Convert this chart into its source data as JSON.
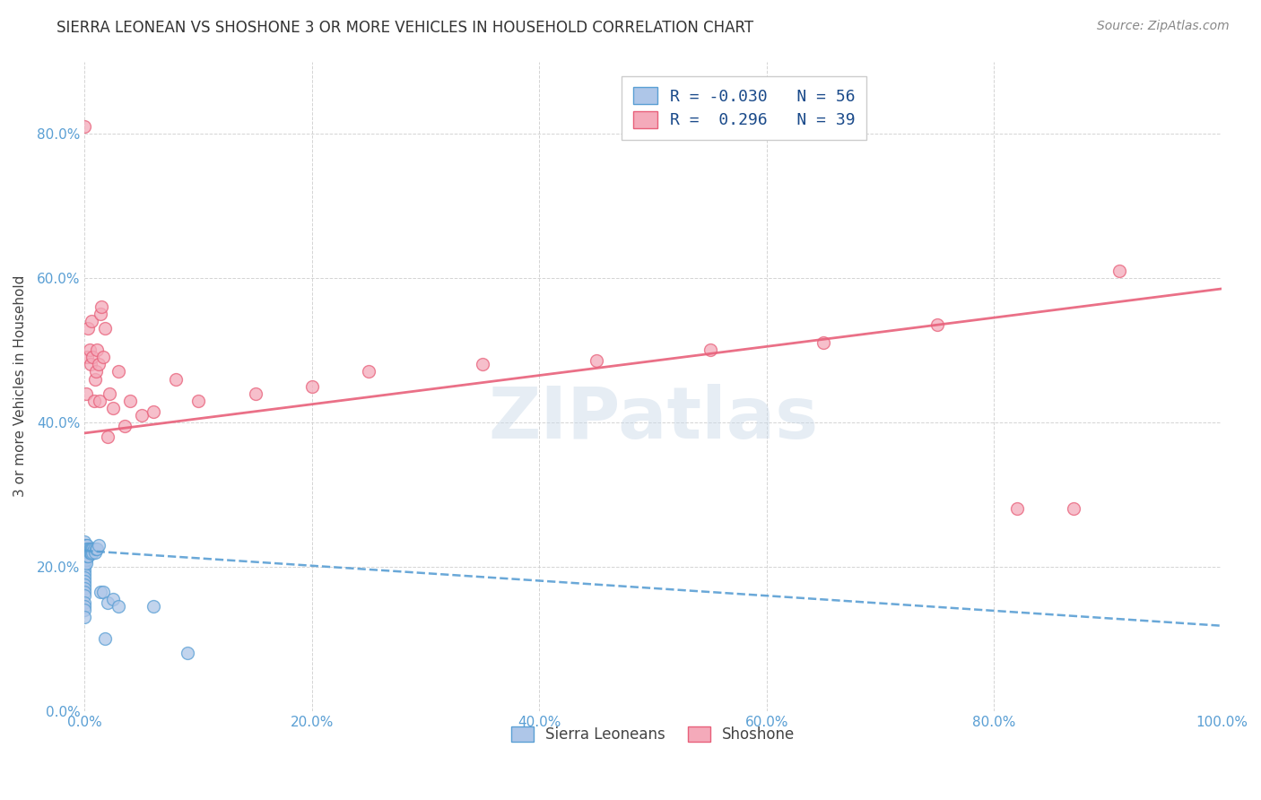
{
  "title": "SIERRA LEONEAN VS SHOSHONE 3 OR MORE VEHICLES IN HOUSEHOLD CORRELATION CHART",
  "source": "Source: ZipAtlas.com",
  "ylabel": "3 or more Vehicles in Household",
  "legend_labels": [
    "Sierra Leoneans",
    "Shoshone"
  ],
  "blue_R": -0.03,
  "blue_N": 56,
  "pink_R": 0.296,
  "pink_N": 39,
  "blue_color": "#aec6e8",
  "pink_color": "#f4aaba",
  "blue_edge_color": "#5a9fd4",
  "pink_edge_color": "#e8607a",
  "blue_line_color": "#5a9fd4",
  "pink_line_color": "#e8607a",
  "watermark": "ZIPatlas",
  "background_color": "#ffffff",
  "blue_x": [
    0.0,
    0.0,
    0.0,
    0.0,
    0.0,
    0.0,
    0.0,
    0.0,
    0.0,
    0.0,
    0.0,
    0.0,
    0.0,
    0.0,
    0.0,
    0.0,
    0.0,
    0.0,
    0.0,
    0.0,
    0.0,
    0.0,
    0.001,
    0.001,
    0.001,
    0.001,
    0.001,
    0.001,
    0.002,
    0.002,
    0.002,
    0.002,
    0.003,
    0.003,
    0.003,
    0.004,
    0.004,
    0.005,
    0.005,
    0.006,
    0.006,
    0.007,
    0.007,
    0.008,
    0.009,
    0.01,
    0.011,
    0.012,
    0.014,
    0.016,
    0.018,
    0.02,
    0.025,
    0.03,
    0.06,
    0.09
  ],
  "blue_y": [
    0.235,
    0.23,
    0.225,
    0.22,
    0.218,
    0.215,
    0.21,
    0.208,
    0.205,
    0.2,
    0.195,
    0.19,
    0.185,
    0.18,
    0.175,
    0.17,
    0.165,
    0.16,
    0.15,
    0.145,
    0.14,
    0.13,
    0.23,
    0.225,
    0.22,
    0.215,
    0.21,
    0.205,
    0.23,
    0.225,
    0.22,
    0.215,
    0.225,
    0.22,
    0.215,
    0.225,
    0.22,
    0.225,
    0.22,
    0.225,
    0.218,
    0.225,
    0.22,
    0.225,
    0.22,
    0.225,
    0.225,
    0.23,
    0.165,
    0.165,
    0.1,
    0.15,
    0.155,
    0.145,
    0.145,
    0.08
  ],
  "pink_x": [
    0.0,
    0.001,
    0.002,
    0.003,
    0.004,
    0.005,
    0.006,
    0.007,
    0.008,
    0.009,
    0.01,
    0.011,
    0.012,
    0.013,
    0.014,
    0.015,
    0.016,
    0.018,
    0.02,
    0.022,
    0.025,
    0.03,
    0.035,
    0.04,
    0.05,
    0.06,
    0.08,
    0.1,
    0.15,
    0.2,
    0.25,
    0.35,
    0.45,
    0.55,
    0.65,
    0.75,
    0.82,
    0.87,
    0.91
  ],
  "pink_y": [
    0.81,
    0.44,
    0.49,
    0.53,
    0.5,
    0.48,
    0.54,
    0.49,
    0.43,
    0.46,
    0.47,
    0.5,
    0.48,
    0.43,
    0.55,
    0.56,
    0.49,
    0.53,
    0.38,
    0.44,
    0.42,
    0.47,
    0.395,
    0.43,
    0.41,
    0.415,
    0.46,
    0.43,
    0.44,
    0.45,
    0.47,
    0.48,
    0.485,
    0.5,
    0.51,
    0.535,
    0.28,
    0.28,
    0.61
  ],
  "xlim": [
    0.0,
    1.0
  ],
  "ylim": [
    0.0,
    0.9
  ],
  "xtick_positions": [
    0.0,
    0.2,
    0.4,
    0.6,
    0.8,
    1.0
  ],
  "ytick_positions": [
    0.0,
    0.2,
    0.4,
    0.6,
    0.8
  ],
  "xtick_labels": [
    "0.0%",
    "20.0%",
    "40.0%",
    "60.0%",
    "80.0%",
    "100.0%"
  ],
  "ytick_labels": [
    "0.0%",
    "20.0%",
    "40.0%",
    "60.0%",
    "80.0%"
  ],
  "blue_line_x0": 0.0,
  "blue_line_x1": 1.0,
  "blue_line_y0": 0.222,
  "blue_line_y1": 0.118,
  "pink_line_x0": 0.0,
  "pink_line_x1": 1.0,
  "pink_line_y0": 0.385,
  "pink_line_y1": 0.585,
  "grid_color": "#d0d0d0",
  "tick_color": "#5a9fd4",
  "title_fontsize": 12,
  "axis_fontsize": 11,
  "legend_fontsize": 13,
  "marker_size": 100
}
